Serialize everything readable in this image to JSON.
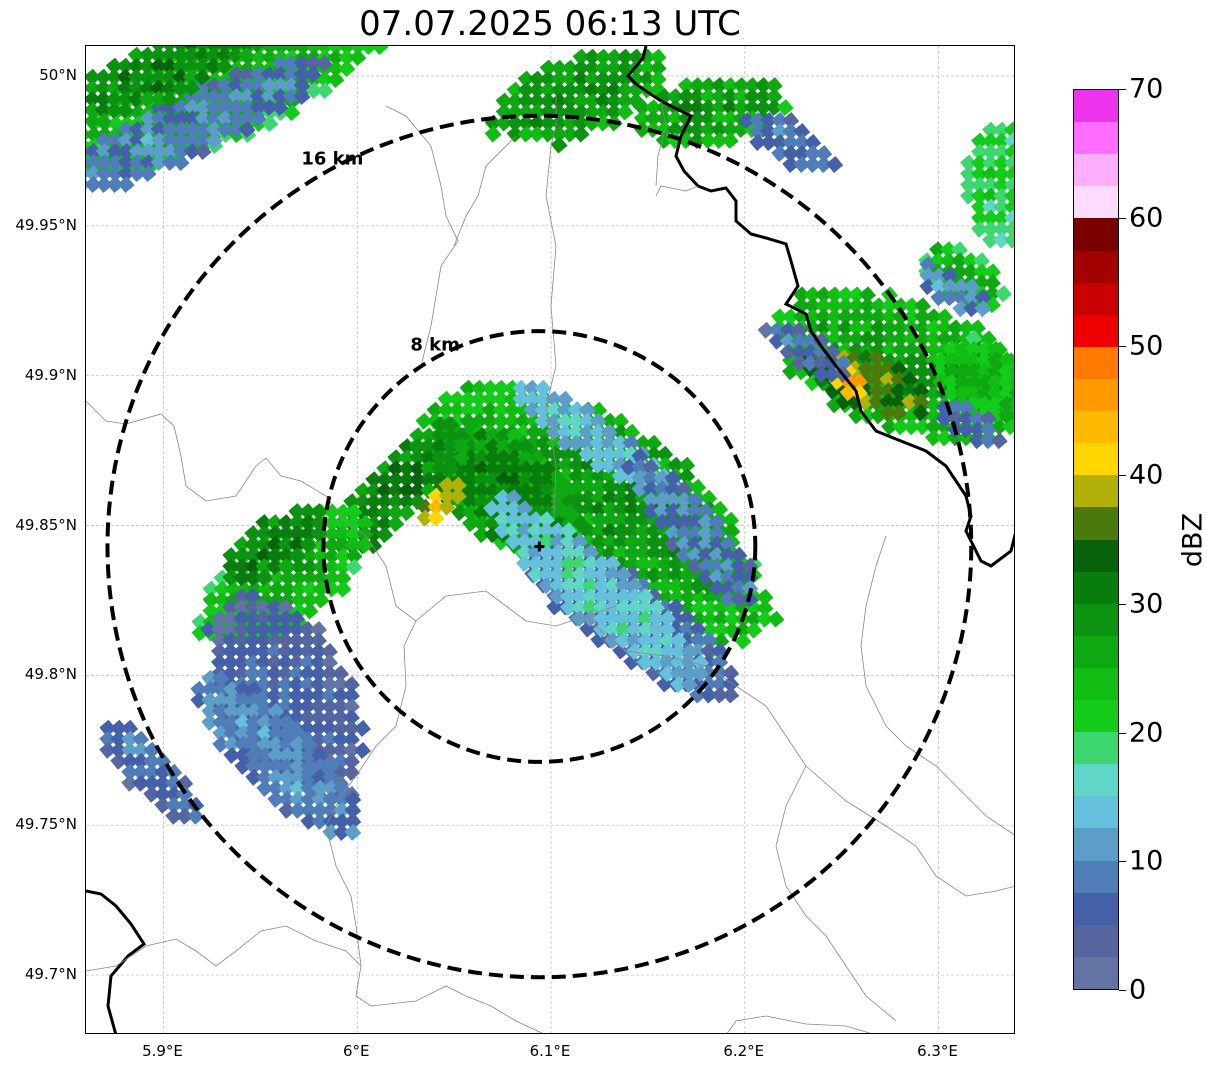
{
  "title": "07.07.2025 06:13 UTC",
  "map": {
    "lon_range": [
      5.86,
      6.34
    ],
    "lat_range": [
      49.68,
      50.01
    ],
    "lat_ticks": [
      {
        "value": 50.0,
        "label": "50°N"
      },
      {
        "value": 49.95,
        "label": "49.95°N"
      },
      {
        "value": 49.9,
        "label": "49.9°N"
      },
      {
        "value": 49.85,
        "label": "49.85°N"
      },
      {
        "value": 49.8,
        "label": "49.8°N"
      },
      {
        "value": 49.75,
        "label": "49.75°N"
      },
      {
        "value": 49.7,
        "label": "49.7°N"
      }
    ],
    "lon_ticks": [
      {
        "value": 5.9,
        "label": "5.9°E"
      },
      {
        "value": 6.0,
        "label": "6°E"
      },
      {
        "value": 6.1,
        "label": "6.1°E"
      },
      {
        "value": 6.2,
        "label": "6.2°E"
      },
      {
        "value": 6.3,
        "label": "6.3°E"
      }
    ],
    "radar_site": {
      "lon": 6.094,
      "lat": 49.843
    },
    "range_rings": [
      {
        "label": "8 km",
        "radius_km": 8
      },
      {
        "label": "16 km",
        "radius_km": 16
      }
    ]
  },
  "colorbar": {
    "unit": "dBZ",
    "ticks": [
      "0",
      "10",
      "20",
      "30",
      "40",
      "50",
      "60",
      "70"
    ],
    "min": 0,
    "max": 70,
    "colors": [
      "#6274a4",
      "#5465a0",
      "#4460a8",
      "#4e7db8",
      "#5c9ec8",
      "#65c0db",
      "#5fd6c6",
      "#3dd670",
      "#13cc1a",
      "#11bc13",
      "#0ea812",
      "#0b9211",
      "#097c0e",
      "#07620b",
      "#4b7a0c",
      "#b1b10a",
      "#ffd600",
      "#ffb900",
      "#ff9b00",
      "#ff7a00",
      "#ee0000",
      "#c80000",
      "#a30000",
      "#7a0000",
      "#ffdcff",
      "#ffadff",
      "#ff6dff",
      "#ee33ee"
    ]
  },
  "echoes": [
    {
      "lon": 6.12,
      "lat": 49.855,
      "rx_km": 8.0,
      "ry_km": 3.2,
      "rot": 35,
      "dbz": 25
    },
    {
      "lon": 6.14,
      "lat": 49.86,
      "rx_km": 5.0,
      "ry_km": 2.5,
      "rot": 40,
      "dbz": 28
    },
    {
      "lon": 6.07,
      "lat": 49.865,
      "rx_km": 3.5,
      "ry_km": 2.0,
      "rot": 30,
      "dbz": 30
    },
    {
      "lon": 6.14,
      "lat": 49.82,
      "rx_km": 5.0,
      "ry_km": 1.6,
      "rot": 35,
      "dbz": 8
    },
    {
      "lon": 6.12,
      "lat": 49.83,
      "rx_km": 5.5,
      "ry_km": 1.3,
      "rot": 40,
      "dbz": 15
    },
    {
      "lon": 6.02,
      "lat": 49.865,
      "rx_km": 3.5,
      "ry_km": 1.2,
      "rot": -45,
      "dbz": 30
    },
    {
      "lon": 6.04,
      "lat": 49.86,
      "rx_km": 1.0,
      "ry_km": 0.5,
      "rot": -45,
      "dbz": 40
    },
    {
      "lon": 6.12,
      "lat": 49.88,
      "rx_km": 4.0,
      "ry_km": 0.8,
      "rot": 35,
      "dbz": 14
    },
    {
      "lon": 6.17,
      "lat": 49.85,
      "rx_km": 4.0,
      "ry_km": 1.0,
      "rot": 50,
      "dbz": 9
    },
    {
      "lon": 5.96,
      "lat": 49.835,
      "rx_km": 4.0,
      "ry_km": 1.8,
      "rot": -35,
      "dbz": 24
    },
    {
      "lon": 5.955,
      "lat": 49.845,
      "rx_km": 2.5,
      "ry_km": 1.0,
      "rot": -35,
      "dbz": 30
    },
    {
      "lon": 5.96,
      "lat": 49.795,
      "rx_km": 4.5,
      "ry_km": 2.5,
      "rot": 60,
      "dbz": 6
    },
    {
      "lon": 5.955,
      "lat": 49.775,
      "rx_km": 4.5,
      "ry_km": 1.4,
      "rot": 45,
      "dbz": 10
    },
    {
      "lon": 5.89,
      "lat": 49.77,
      "rx_km": 2.8,
      "ry_km": 0.9,
      "rot": 45,
      "dbz": 8
    },
    {
      "lon": 5.93,
      "lat": 50.0,
      "rx_km": 7.0,
      "ry_km": 2.2,
      "rot": -25,
      "dbz": 24
    },
    {
      "lon": 5.91,
      "lat": 49.985,
      "rx_km": 6.0,
      "ry_km": 1.2,
      "rot": -25,
      "dbz": 9
    },
    {
      "lon": 5.9,
      "lat": 50.005,
      "rx_km": 4.5,
      "ry_km": 1.2,
      "rot": -25,
      "dbz": 30
    },
    {
      "lon": 6.11,
      "lat": 49.995,
      "rx_km": 3.5,
      "ry_km": 1.6,
      "rot": -20,
      "dbz": 28
    },
    {
      "lon": 6.18,
      "lat": 49.99,
      "rx_km": 3.0,
      "ry_km": 1.3,
      "rot": -10,
      "dbz": 27
    },
    {
      "lon": 6.22,
      "lat": 49.98,
      "rx_km": 2.0,
      "ry_km": 0.8,
      "rot": 30,
      "dbz": 8
    },
    {
      "lon": 6.28,
      "lat": 49.905,
      "rx_km": 5.5,
      "ry_km": 2.6,
      "rot": 20,
      "dbz": 26
    },
    {
      "lon": 6.26,
      "lat": 49.9,
      "rx_km": 2.5,
      "ry_km": 1.1,
      "rot": 20,
      "dbz": 36
    },
    {
      "lon": 6.25,
      "lat": 49.9,
      "rx_km": 0.8,
      "ry_km": 0.5,
      "rot": 20,
      "dbz": 43
    },
    {
      "lon": 6.31,
      "lat": 49.935,
      "rx_km": 1.8,
      "ry_km": 1.0,
      "rot": 30,
      "dbz": 24
    },
    {
      "lon": 6.32,
      "lat": 49.9,
      "rx_km": 2.0,
      "ry_km": 1.5,
      "rot": 30,
      "dbz": 24
    },
    {
      "lon": 6.23,
      "lat": 49.91,
      "rx_km": 2.0,
      "ry_km": 0.7,
      "rot": 30,
      "dbz": 7
    },
    {
      "lon": 6.33,
      "lat": 49.965,
      "rx_km": 1.5,
      "ry_km": 2.5,
      "rot": 0,
      "dbz": 20
    },
    {
      "lon": 6.305,
      "lat": 49.93,
      "rx_km": 1.8,
      "ry_km": 0.6,
      "rot": 35,
      "dbz": 10
    },
    {
      "lon": 6.315,
      "lat": 49.885,
      "rx_km": 1.5,
      "ry_km": 0.6,
      "rot": 35,
      "dbz": 7
    }
  ]
}
